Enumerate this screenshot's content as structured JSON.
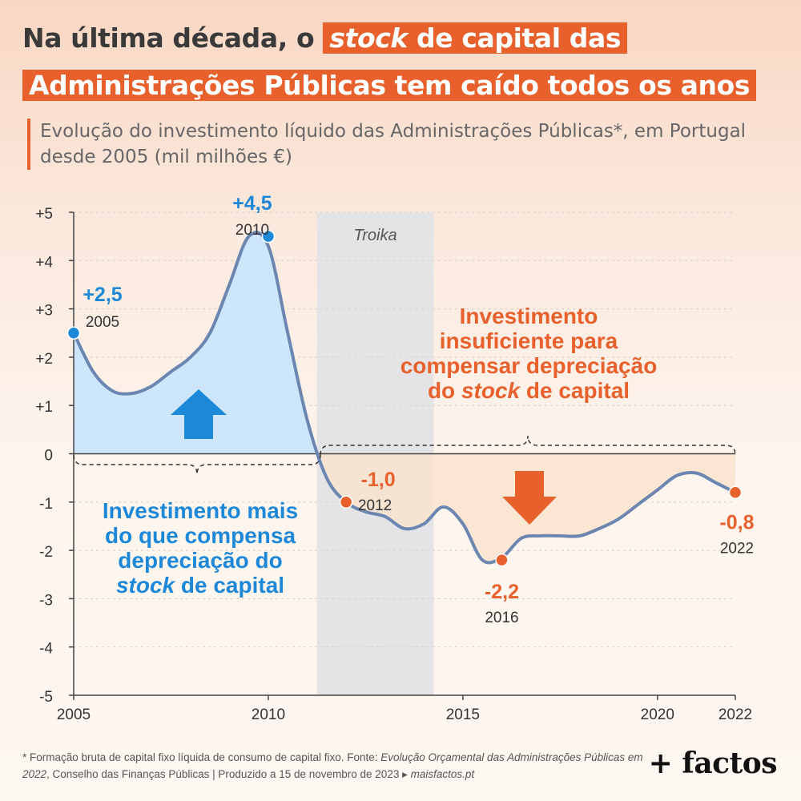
{
  "title": {
    "line1_pre": "Na última década, o",
    "line1_hl_italic": "stock",
    "line1_hl_rest": "de capital das",
    "line2": "Administrações Públicas tem caído todos os anos"
  },
  "subtitle": "Evolução do investimento líquido das Administrações Públicas*, em Portugal desde 2005 (mil milhões €)",
  "chart_data": {
    "type": "area",
    "x": [
      2005,
      2005.5,
      2006,
      2006.5,
      2007,
      2007.5,
      2008,
      2008.5,
      2009,
      2009.5,
      2010,
      2010.5,
      2011,
      2011.5,
      2012,
      2012.5,
      2013,
      2013.5,
      2014,
      2014.5,
      2015,
      2015.5,
      2016,
      2016.5,
      2017,
      2017.5,
      2018,
      2018.5,
      2019,
      2019.5,
      2020,
      2020.5,
      2021,
      2021.5,
      2022
    ],
    "values": [
      2.5,
      1.7,
      1.3,
      1.25,
      1.4,
      1.7,
      2.0,
      2.5,
      3.5,
      4.5,
      4.3,
      2.5,
      0.7,
      -0.5,
      -1.0,
      -1.2,
      -1.3,
      -1.55,
      -1.45,
      -1.1,
      -1.45,
      -2.2,
      -2.15,
      -1.75,
      -1.7,
      -1.7,
      -1.7,
      -1.55,
      -1.35,
      -1.05,
      -0.75,
      -0.45,
      -0.4,
      -0.6,
      -0.8
    ],
    "xlim": [
      2005,
      2022
    ],
    "ylim": [
      -5,
      5
    ],
    "yticks": [
      "+5",
      "+4",
      "+3",
      "+2",
      "+1",
      "0",
      "-1",
      "-2",
      "-3",
      "-4",
      "-5"
    ],
    "xticks": [
      "2005",
      "2010",
      "2015",
      "2020",
      "2022"
    ],
    "grid": true,
    "highlights": [
      {
        "x": 2005,
        "y": 2.5,
        "value_label": "+2,5",
        "year_label": "2005",
        "color": "#1e88d8"
      },
      {
        "x": 2010,
        "y": 4.5,
        "value_label": "+4,5",
        "year_label": "2010",
        "color": "#1e88d8"
      },
      {
        "x": 2012,
        "y": -1.0,
        "value_label": "-1,0",
        "year_label": "2012",
        "color": "#e8602c"
      },
      {
        "x": 2016,
        "y": -2.2,
        "value_label": "-2,2",
        "year_label": "2016",
        "color": "#e8602c"
      },
      {
        "x": 2022,
        "y": -0.8,
        "value_label": "-0,8",
        "year_label": "2022",
        "color": "#e8602c"
      }
    ],
    "shaded_period": {
      "label": "Troika",
      "x_start": 2011.25,
      "x_end": 2014.25
    },
    "annotations": {
      "positive": [
        "Investimento mais",
        "do que compensa",
        "depreciação do"
      ],
      "positive_last_italic": "stock",
      "positive_last_rest": " de capital",
      "negative": [
        "Investimento",
        "insuficiente para",
        "compensar depreciação"
      ],
      "negative_last_pre": "do ",
      "negative_last_italic": "stock",
      "negative_last_rest": " de capital"
    }
  },
  "colors": {
    "accent": "#e8602c",
    "blue": "#1e88d8",
    "line": "#6b86b0",
    "positive_fill": "#cde6fb",
    "negative_fill": "#f9e3cd",
    "troika": "#e4e4e6"
  },
  "footnote": {
    "part1": "* Formação bruta de capital fixo líquida de consumo de capital fixo. Fonte: ",
    "source_italic": "Evolução Orçamental das Administrações Públicas em 2022",
    "part2": ", Conselho das Finanças Públicas | Produzido a 15 de novembro de 2023 ▸ ",
    "site_italic": "maisfactos.pt"
  },
  "logo": "+ factos"
}
